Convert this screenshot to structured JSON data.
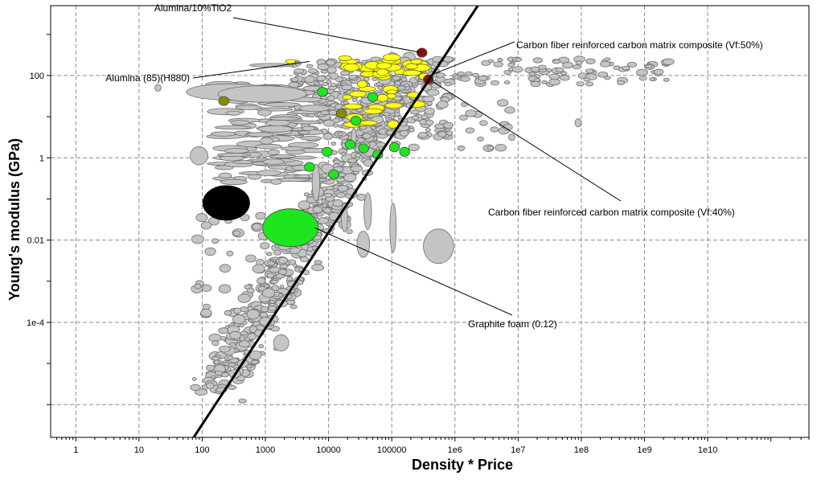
{
  "chart_data": {
    "type": "scatter",
    "xlabel": "Density * Price",
    "ylabel": "Young's modulus (GPa)",
    "x_scale": "log",
    "y_scale": "log",
    "xlim": [
      0.4,
      400000000000.0
    ],
    "ylim": [
      1.6e-07,
      5000
    ],
    "grid": true,
    "x_ticks": [
      {
        "value": 1,
        "label": "1"
      },
      {
        "value": 10,
        "label": "10"
      },
      {
        "value": 100,
        "label": "100"
      },
      {
        "value": 1000,
        "label": "1000"
      },
      {
        "value": 10000,
        "label": "10000"
      },
      {
        "value": 100000,
        "label": "100000"
      },
      {
        "value": 1000000,
        "label": "1e6"
      },
      {
        "value": 10000000,
        "label": "1e7"
      },
      {
        "value": 100000000,
        "label": "1e8"
      },
      {
        "value": 1000000000,
        "label": "1e9"
      },
      {
        "value": 10000000000,
        "label": "1e10"
      }
    ],
    "y_ticks": [
      {
        "value": 0.0001,
        "label": "1e-4"
      },
      {
        "value": 0.01,
        "label": "0.01"
      },
      {
        "value": 1,
        "label": "1"
      },
      {
        "value": 100,
        "label": "100"
      }
    ],
    "colors": {
      "grey": "#c4c4c4",
      "grey_stroke": "#6e6e6e",
      "yellow": "#ffff1e",
      "green": "#1ee61e",
      "darkred": "#8b0f0f",
      "olive": "#8a8a00",
      "black": "#000000"
    },
    "selection_line": {
      "from": [
        60,
        1e-07
      ],
      "to": [
        2300000,
        5000
      ]
    },
    "highlighted": [
      {
        "x": 300000,
        "y": 360,
        "color": "darkred"
      },
      {
        "x": 380000,
        "y": 80,
        "color": "darkred"
      },
      {
        "x": 16000,
        "y": 12,
        "color": "olive"
      },
      {
        "x": 220,
        "y": 24,
        "color": "olive"
      },
      {
        "x": 240,
        "y": 0.08,
        "color": "black",
        "rx_dec": 0.37,
        "ry_dec": 0.42
      },
      {
        "x": 2500,
        "y": 0.02,
        "color": "green",
        "rx_dec": 0.44,
        "ry_dec": 0.46
      },
      {
        "x": 50000,
        "y": 30,
        "color": "green"
      },
      {
        "x": 27000,
        "y": 8,
        "color": "green"
      },
      {
        "x": 22000,
        "y": 2.1,
        "color": "green"
      },
      {
        "x": 36000,
        "y": 1.7,
        "color": "green"
      },
      {
        "x": 12000,
        "y": 0.4,
        "color": "green"
      },
      {
        "x": 9500,
        "y": 1.4,
        "color": "green"
      },
      {
        "x": 160000,
        "y": 1.4,
        "color": "green"
      },
      {
        "x": 110000,
        "y": 1.8,
        "color": "green"
      },
      {
        "x": 5000,
        "y": 0.6,
        "color": "green"
      },
      {
        "x": 60000,
        "y": 1.2,
        "color": "green"
      },
      {
        "x": 8000,
        "y": 40,
        "color": "green"
      }
    ],
    "annotations": [
      {
        "label": "Alumina/10%TiO2",
        "x": 300000,
        "y": 360,
        "text_anchor": "middle"
      },
      {
        "label": "Alumina (85)(H880)",
        "x": 5000,
        "y": 220,
        "text_anchor": "end"
      },
      {
        "label": "Carbon fiber reinforced carbon matrix composite (Vf:50%)",
        "x": 400000,
        "y": 100,
        "text_anchor": "start"
      },
      {
        "label": "Carbon fiber reinforced carbon matrix composite (Vf:40%)",
        "x": 450000,
        "y": 70,
        "text_anchor": "start"
      },
      {
        "label": "Graphite foam (0.12)",
        "x": 6000,
        "y": 0.02,
        "text_anchor": "start"
      }
    ]
  }
}
